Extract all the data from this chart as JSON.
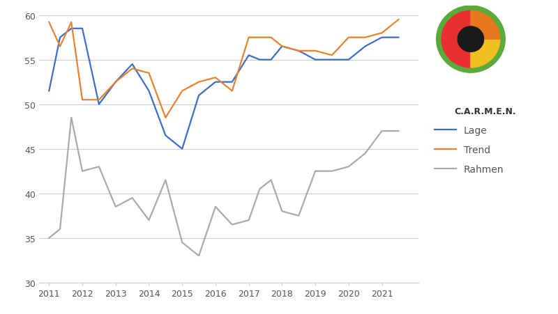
{
  "lage": {
    "x": [
      2011.0,
      2011.33,
      2011.67,
      2012.0,
      2012.5,
      2013.0,
      2013.5,
      2014.0,
      2014.5,
      2015.0,
      2015.5,
      2016.0,
      2016.5,
      2017.0,
      2017.33,
      2017.67,
      2018.0,
      2018.5,
      2019.0,
      2019.5,
      2020.0,
      2020.5,
      2021.0,
      2021.5
    ],
    "y": [
      51.5,
      57.5,
      58.5,
      58.5,
      50.0,
      52.5,
      54.5,
      51.5,
      46.5,
      45.0,
      51.0,
      52.5,
      52.5,
      55.5,
      55.0,
      55.0,
      56.5,
      56.0,
      55.0,
      55.0,
      55.0,
      56.5,
      57.5,
      57.5
    ],
    "color": "#3C6DC8",
    "label": "Lage"
  },
  "trend": {
    "x": [
      2011.0,
      2011.33,
      2011.67,
      2012.0,
      2012.5,
      2013.0,
      2013.5,
      2014.0,
      2014.5,
      2015.0,
      2015.5,
      2016.0,
      2016.5,
      2017.0,
      2017.33,
      2017.67,
      2018.0,
      2018.5,
      2019.0,
      2019.5,
      2020.0,
      2020.5,
      2021.0,
      2021.5
    ],
    "y": [
      59.2,
      56.5,
      59.2,
      50.5,
      50.5,
      52.5,
      54.0,
      53.5,
      48.5,
      51.5,
      52.5,
      53.0,
      51.5,
      57.5,
      57.5,
      57.5,
      56.5,
      56.0,
      56.0,
      55.5,
      57.5,
      57.5,
      58.0,
      59.5
    ],
    "color": "#E8822D",
    "label": "Trend"
  },
  "rahmen": {
    "x": [
      2011.0,
      2011.33,
      2011.67,
      2012.0,
      2012.5,
      2013.0,
      2013.5,
      2014.0,
      2014.5,
      2015.0,
      2015.5,
      2016.0,
      2016.5,
      2017.0,
      2017.33,
      2017.67,
      2018.0,
      2018.5,
      2019.0,
      2019.5,
      2020.0,
      2020.5,
      2021.0,
      2021.5
    ],
    "y": [
      35.0,
      36.0,
      48.5,
      42.5,
      43.0,
      38.5,
      39.5,
      37.0,
      41.5,
      34.5,
      33.0,
      38.5,
      36.5,
      37.0,
      40.5,
      41.5,
      38.0,
      37.5,
      42.5,
      42.5,
      43.0,
      44.5,
      47.0,
      47.0
    ],
    "color": "#AAAAAA",
    "label": "Rahmen"
  },
  "xlim": [
    2010.7,
    2022.1
  ],
  "ylim": [
    30,
    60
  ],
  "yticks": [
    30,
    35,
    40,
    45,
    50,
    55,
    60
  ],
  "xticks": [
    2011,
    2012,
    2013,
    2014,
    2015,
    2016,
    2017,
    2018,
    2019,
    2020,
    2021
  ],
  "grid_color": "#CCCCCC",
  "background_color": "#FFFFFF",
  "legend_fontsize": 10,
  "tick_fontsize": 9,
  "line_width": 1.6
}
